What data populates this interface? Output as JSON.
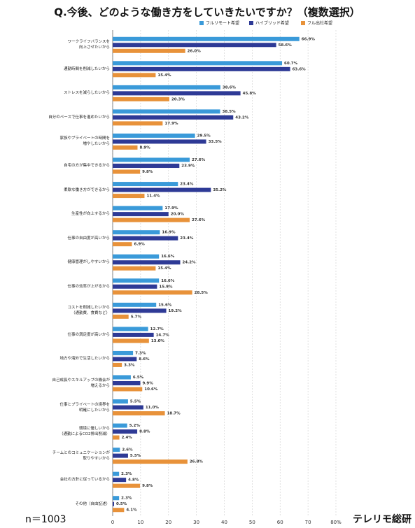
{
  "chart_data": {
    "type": "bar",
    "orientation": "horizontal",
    "title": "Q.今後、どのような働き方をしていきたいですか？（複数選択）",
    "categories": [
      "ワークライフバランスを\n向上させたいから",
      "通勤時間を削減したいから",
      "ストレスを減らしたいから",
      "自分のペースで仕事を進めたいから",
      "家族やプライベートの時間を\n増やしたいから",
      "自宅の方が集中できるから",
      "柔軟な働き方ができるから",
      "生産性が向上するから",
      "仕事の自由度が高いから",
      "健康管理がしやすいから",
      "仕事の効率が上がるから",
      "コストを削減したいから\n（通勤費、食費など）",
      "仕事の満足度が高いから",
      "地方や海外で生活したいから",
      "自己成長やスキルアップの機会が\n増えるから",
      "仕事とプライベートの境界を\n明確にしたいから",
      "環境に優しいから\n（通勤によるCO2排出削減）",
      "チームとのコミュニケーションが\n取りやすいから",
      "会社の方針に従っているから",
      "その他（自由記述）"
    ],
    "series": [
      {
        "name": "フルリモート希望",
        "color": "#3a9ad9",
        "values": [
          66.9,
          60.7,
          38.6,
          38.5,
          29.5,
          27.6,
          23.4,
          17.9,
          16.9,
          16.6,
          16.6,
          15.6,
          12.7,
          7.3,
          6.5,
          5.5,
          5.2,
          2.6,
          2.3,
          2.3
        ],
        "value_labels": [
          "66.9%",
          "60.7%",
          "38.6%",
          "38.5%",
          "29.5%",
          "27.6%",
          "23.4%",
          "17.9%",
          "16.9%",
          "16.6%",
          "16.6%",
          "15.6%",
          "12.7%",
          "7.3%",
          "6.5%",
          "5.5%",
          "5.2%",
          "2.6%",
          "2.3%",
          "2.3%"
        ]
      },
      {
        "name": "ハイブリッド希望",
        "color": "#2e3a96",
        "values": [
          58.6,
          63.6,
          45.8,
          43.2,
          33.5,
          23.9,
          35.2,
          20.0,
          23.4,
          24.2,
          15.9,
          19.2,
          14.7,
          8.6,
          9.9,
          11.0,
          8.8,
          5.5,
          4.8,
          0.5
        ],
        "value_labels": [
          "58.6%",
          "63.6%",
          "45.8%",
          "43.2%",
          "33.5%",
          "23.9%",
          "35.2%",
          "20.0%",
          "23.4%",
          "24.2%",
          "15.9%",
          "19.2%",
          "14.7%",
          "8.6%",
          "9.9%",
          "11.0%",
          "8.8%",
          "5.5%",
          "4.8%",
          "0.5%"
        ]
      },
      {
        "name": "フル出社希望",
        "color": "#e8923a",
        "values": [
          26.0,
          15.4,
          20.3,
          17.9,
          8.9,
          9.8,
          11.4,
          27.6,
          6.9,
          15.4,
          28.5,
          5.7,
          13.0,
          3.3,
          10.6,
          18.7,
          2.4,
          26.8,
          9.8,
          4.1
        ],
        "value_labels": [
          "26.0%",
          "15.4%",
          "20.3%",
          "17.9%",
          "8.9%",
          "9.8%",
          "11.4%",
          "27.6%",
          "6.9%",
          "15.4%",
          "28.5%",
          "5.7%",
          "13.0%",
          "3.3%",
          "10.6%",
          "18.7%",
          "2.4%",
          "26.8%",
          "9.8%",
          "4.1%"
        ]
      }
    ],
    "xlim": [
      0,
      80
    ],
    "xticks": [
      0,
      10,
      20,
      30,
      40,
      50,
      60,
      70,
      {
        "value": 80,
        "label": "80%"
      }
    ],
    "grid": true,
    "legend": "top",
    "sample_size": "n＝1003",
    "brand": "テレリモ総研"
  }
}
